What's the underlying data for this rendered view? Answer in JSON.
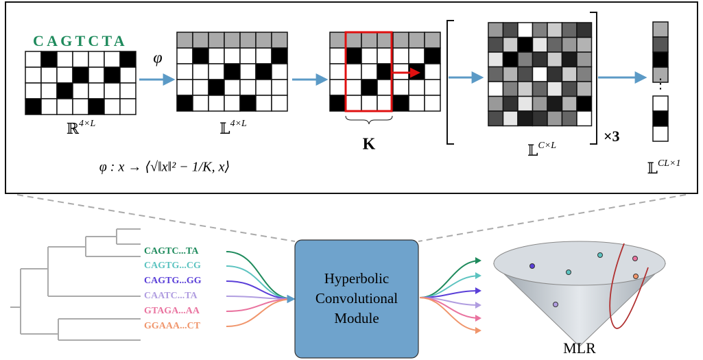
{
  "top_panel": {
    "sequence": "CAGTCTA",
    "map_symbol": "φ",
    "input_space": {
      "base": "ℝ",
      "exponent": "4×L"
    },
    "lifted_space": {
      "base": "𝕃",
      "exponent": "4×L"
    },
    "kernel": "K",
    "feature_space": {
      "base": "𝕃",
      "exponent": "C×L"
    },
    "repeat": "×3",
    "output_space": {
      "base": "𝕃",
      "exponent": "CL×1"
    },
    "formula": "φ : x → ⟨√‖x‖² − 1/K, x⟩"
  },
  "sequences": [
    {
      "label": "CAGTC...TA",
      "color": "#1e8a5c"
    },
    {
      "label": "CAGTG...CG",
      "color": "#5cc3c0"
    },
    {
      "label": "CAGTG...GG",
      "color": "#5a3fd8"
    },
    {
      "label": "CAATC...TA",
      "color": "#b09de0"
    },
    {
      "label": "GTAGA...AA",
      "color": "#e9739f"
    },
    {
      "label": "GGAAA...CT",
      "color": "#f0956b"
    }
  ],
  "module": {
    "lines": [
      "Hyperbolic",
      "Convolutional",
      "Module"
    ]
  },
  "classifier": "MLR"
}
